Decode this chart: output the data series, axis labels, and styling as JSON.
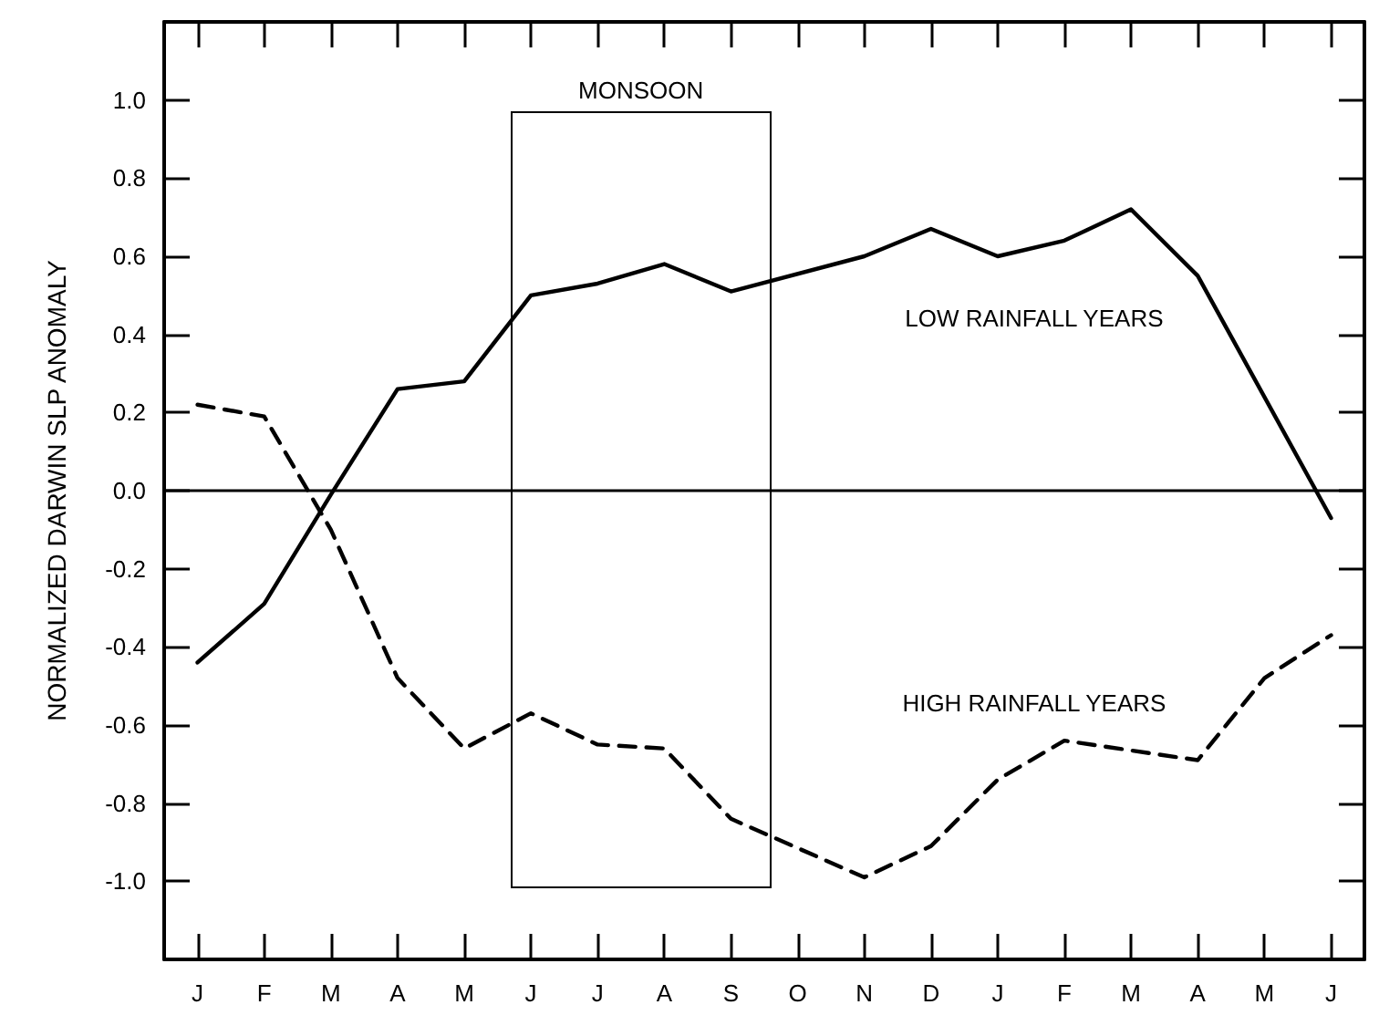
{
  "chart_data": {
    "type": "line",
    "ylabel": "NORMALIZED DARWIN SLP ANOMALY",
    "categories": [
      "J",
      "F",
      "M",
      "A",
      "M",
      "J",
      "J",
      "A",
      "S",
      "O",
      "N",
      "D",
      "J",
      "F",
      "M",
      "A",
      "M",
      "J"
    ],
    "ylim": [
      -1.2,
      1.2
    ],
    "yticks": [
      {
        "value": -1,
        "label": "-1.0"
      },
      -0.8,
      -0.6,
      -0.4,
      -0.2,
      {
        "value": 0,
        "label": "0.0"
      },
      0.2,
      0.4,
      0.6,
      0.8,
      {
        "value": 1,
        "label": "1.0"
      }
    ],
    "grid": false,
    "legend": false,
    "marker": "none",
    "series": [
      {
        "name": "LOW RAINFALL YEARS",
        "color": "#000000",
        "line_style": "solid",
        "values": [
          -0.44,
          -0.29,
          -0.01,
          0.26,
          0.28,
          0.5,
          0.53,
          0.58,
          0.51,
          null,
          0.6,
          0.67,
          0.6,
          0.64,
          0.72,
          0.55,
          null,
          -0.07
        ]
      },
      {
        "name": "HIGH RAINFALL YEARS",
        "color": "#000000",
        "line_style": "dashed",
        "values": [
          0.22,
          0.19,
          -0.1,
          -0.48,
          -0.66,
          -0.57,
          -0.65,
          -0.66,
          -0.84,
          null,
          -0.99,
          -0.91,
          -0.74,
          -0.64,
          null,
          -0.69,
          -0.48,
          -0.37
        ]
      }
    ],
    "ref_lines": [
      {
        "axis": "y",
        "value": 0,
        "color": "#000000",
        "line_style": "solid"
      }
    ],
    "annotations": [
      "MONSOON"
    ]
  }
}
